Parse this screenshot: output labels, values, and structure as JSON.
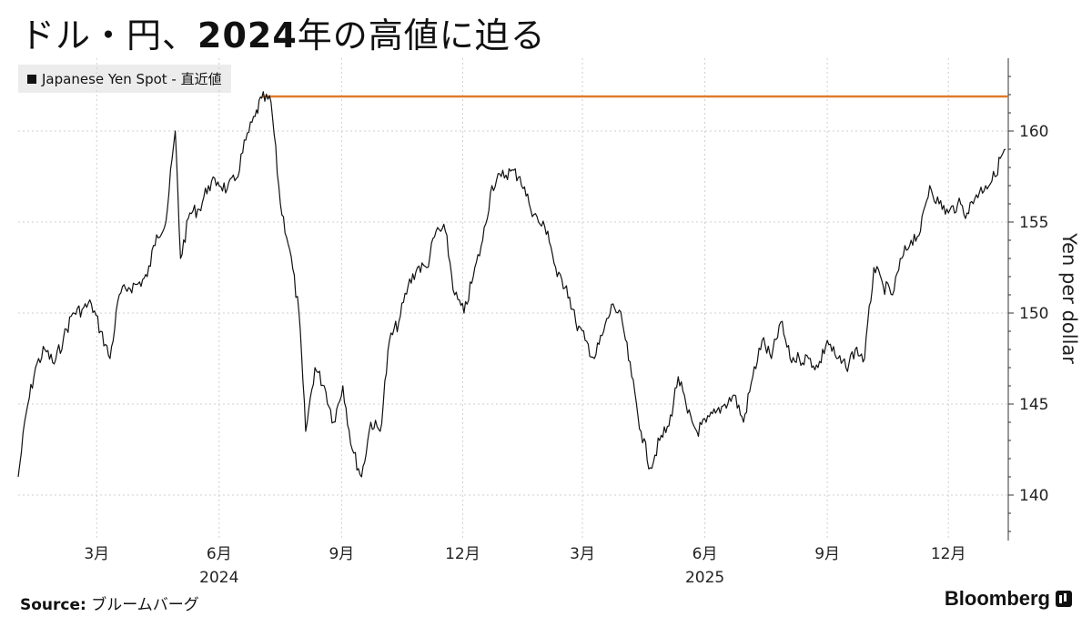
{
  "title_pre": "ドル・円、",
  "title_num": "2024",
  "title_post": "年の高値に迫る",
  "legend_label": "Japanese Yen Spot - 直近値",
  "source_key": "Source:",
  "source_value": "ブルームバーグ",
  "brand": "Bloomberg",
  "colors": {
    "series": "#111111",
    "reference": "#e07a2c",
    "grid": "#cfcfcf"
  },
  "chart_data": {
    "type": "line",
    "ylabel": "Yen per dollar",
    "ylim": [
      137.5,
      164
    ],
    "yticks": [
      140,
      145,
      150,
      155,
      160
    ],
    "xlim": [
      "2024-01-02",
      "2026-01-15"
    ],
    "xticks": [
      {
        "date": "2024-03-01",
        "label": "3月"
      },
      {
        "date": "2024-06-01",
        "label": "6月"
      },
      {
        "date": "2024-09-01",
        "label": "9月"
      },
      {
        "date": "2024-12-01",
        "label": "12月"
      },
      {
        "date": "2025-03-01",
        "label": "3月"
      },
      {
        "date": "2025-06-01",
        "label": "6月"
      },
      {
        "date": "2025-09-01",
        "label": "9月"
      },
      {
        "date": "2025-12-01",
        "label": "12月"
      }
    ],
    "year_labels": [
      {
        "date": "2024-06-01",
        "label": "2024"
      },
      {
        "date": "2025-06-01",
        "label": "2025"
      }
    ],
    "reference_line": {
      "value": 161.9,
      "start": "2024-07-03"
    },
    "series": [
      {
        "points": [
          [
            "2024-01-02",
            141.0
          ],
          [
            "2024-01-08",
            144.5
          ],
          [
            "2024-01-15",
            147.0
          ],
          [
            "2024-01-22",
            148.0
          ],
          [
            "2024-01-29",
            147.2
          ],
          [
            "2024-02-05",
            148.6
          ],
          [
            "2024-02-12",
            150.0
          ],
          [
            "2024-02-19",
            150.2
          ],
          [
            "2024-02-26",
            150.5
          ],
          [
            "2024-03-04",
            149.0
          ],
          [
            "2024-03-11",
            147.5
          ],
          [
            "2024-03-18",
            151.0
          ],
          [
            "2024-03-25",
            151.4
          ],
          [
            "2024-04-01",
            151.6
          ],
          [
            "2024-04-08",
            152.0
          ],
          [
            "2024-04-15",
            154.3
          ],
          [
            "2024-04-22",
            155.0
          ],
          [
            "2024-04-29",
            160.0
          ],
          [
            "2024-05-03",
            153.0
          ],
          [
            "2024-05-10",
            155.5
          ],
          [
            "2024-05-17",
            155.7
          ],
          [
            "2024-05-24",
            157.0
          ],
          [
            "2024-05-31",
            157.2
          ],
          [
            "2024-06-07",
            156.8
          ],
          [
            "2024-06-14",
            157.4
          ],
          [
            "2024-06-21",
            159.5
          ],
          [
            "2024-06-28",
            160.8
          ],
          [
            "2024-07-03",
            161.8
          ],
          [
            "2024-07-10",
            161.6
          ],
          [
            "2024-07-17",
            156.0
          ],
          [
            "2024-07-24",
            153.5
          ],
          [
            "2024-07-31",
            150.0
          ],
          [
            "2024-08-05",
            143.5
          ],
          [
            "2024-08-12",
            147.0
          ],
          [
            "2024-08-19",
            146.0
          ],
          [
            "2024-08-26",
            144.0
          ],
          [
            "2024-09-02",
            146.0
          ],
          [
            "2024-09-09",
            142.5
          ],
          [
            "2024-09-16",
            141.0
          ],
          [
            "2024-09-23",
            144.0
          ],
          [
            "2024-09-30",
            143.5
          ],
          [
            "2024-10-07",
            148.5
          ],
          [
            "2024-10-14",
            149.5
          ],
          [
            "2024-10-21",
            151.5
          ],
          [
            "2024-10-28",
            152.5
          ],
          [
            "2024-11-04",
            152.5
          ],
          [
            "2024-11-11",
            154.5
          ],
          [
            "2024-11-18",
            154.5
          ],
          [
            "2024-11-25",
            151.0
          ],
          [
            "2024-12-02",
            150.0
          ],
          [
            "2024-12-09",
            152.0
          ],
          [
            "2024-12-16",
            154.0
          ],
          [
            "2024-12-23",
            157.0
          ],
          [
            "2024-12-30",
            157.5
          ],
          [
            "2025-01-06",
            157.8
          ],
          [
            "2025-01-13",
            157.5
          ],
          [
            "2025-01-20",
            156.0
          ],
          [
            "2025-01-27",
            155.0
          ],
          [
            "2025-02-03",
            154.5
          ],
          [
            "2025-02-10",
            152.0
          ],
          [
            "2025-02-17",
            151.5
          ],
          [
            "2025-02-24",
            149.5
          ],
          [
            "2025-03-03",
            148.5
          ],
          [
            "2025-03-10",
            147.5
          ],
          [
            "2025-03-17",
            149.0
          ],
          [
            "2025-03-24",
            150.5
          ],
          [
            "2025-03-31",
            149.5
          ],
          [
            "2025-04-07",
            146.5
          ],
          [
            "2025-04-14",
            143.5
          ],
          [
            "2025-04-21",
            141.5
          ],
          [
            "2025-04-28",
            143.0
          ],
          [
            "2025-05-05",
            143.8
          ],
          [
            "2025-05-12",
            146.5
          ],
          [
            "2025-05-19",
            144.5
          ],
          [
            "2025-05-26",
            143.5
          ],
          [
            "2025-06-02",
            144.0
          ],
          [
            "2025-06-09",
            144.5
          ],
          [
            "2025-06-16",
            145.0
          ],
          [
            "2025-06-23",
            145.5
          ],
          [
            "2025-06-30",
            144.0
          ],
          [
            "2025-07-07",
            146.5
          ],
          [
            "2025-07-14",
            148.5
          ],
          [
            "2025-07-21",
            147.5
          ],
          [
            "2025-07-28",
            149.5
          ],
          [
            "2025-08-04",
            147.5
          ],
          [
            "2025-08-11",
            147.5
          ],
          [
            "2025-08-18",
            147.5
          ],
          [
            "2025-08-25",
            147.0
          ],
          [
            "2025-09-01",
            148.5
          ],
          [
            "2025-09-08",
            147.5
          ],
          [
            "2025-09-15",
            147.0
          ],
          [
            "2025-09-22",
            148.0
          ],
          [
            "2025-09-29",
            147.5
          ],
          [
            "2025-10-06",
            152.5
          ],
          [
            "2025-10-13",
            151.5
          ],
          [
            "2025-10-20",
            151.0
          ],
          [
            "2025-10-27",
            153.0
          ],
          [
            "2025-11-03",
            154.0
          ],
          [
            "2025-11-10",
            154.5
          ],
          [
            "2025-11-17",
            157.0
          ],
          [
            "2025-11-24",
            156.0
          ],
          [
            "2025-12-01",
            155.5
          ],
          [
            "2025-12-08",
            156.0
          ],
          [
            "2025-12-15",
            155.5
          ],
          [
            "2025-12-22",
            156.5
          ],
          [
            "2025-12-29",
            157.0
          ],
          [
            "2026-01-05",
            157.5
          ],
          [
            "2026-01-09",
            158.5
          ],
          [
            "2026-01-13",
            159.0
          ]
        ]
      }
    ]
  }
}
